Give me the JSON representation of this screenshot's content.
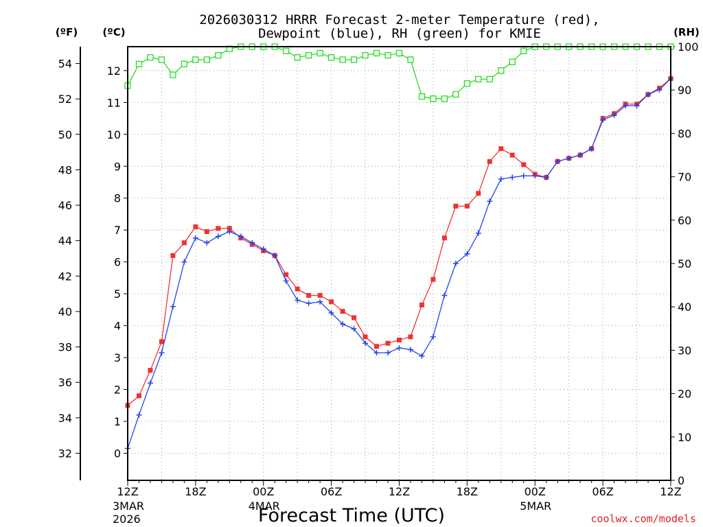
{
  "chart_data": {
    "type": "line",
    "title_line1": "2026030312 HRRR Forecast 2-meter Temperature (red),",
    "title_line2": "Dewpoint (blue), RH (green) for KMIE",
    "xlabel": "Forecast Time (UTC)",
    "left_unit_f": "(ºF)",
    "left_unit_c": "(ºC)",
    "right_unit": "(RH)",
    "credit": "coolwx.com/models",
    "x_hours": [
      0,
      1,
      2,
      3,
      4,
      5,
      6,
      7,
      8,
      9,
      10,
      11,
      12,
      13,
      14,
      15,
      16,
      17,
      18,
      19,
      20,
      21,
      22,
      23,
      24,
      25,
      26,
      27,
      28,
      29,
      30,
      31,
      32,
      33,
      34,
      35,
      36,
      37,
      38,
      39,
      40,
      41,
      42,
      43,
      44,
      45,
      46,
      47,
      48
    ],
    "xlim": [
      0,
      48
    ],
    "ylim_c": [
      -0.85,
      12.75
    ],
    "ylim_rh": [
      0,
      100
    ],
    "x_ticks": [
      {
        "hour": 0,
        "label": "12Z",
        "sub1": "3MAR",
        "sub2": "2026"
      },
      {
        "hour": 6,
        "label": "18Z",
        "sub1": "",
        "sub2": ""
      },
      {
        "hour": 12,
        "label": "00Z",
        "sub1": "4MAR",
        "sub2": ""
      },
      {
        "hour": 18,
        "label": "06Z",
        "sub1": "",
        "sub2": ""
      },
      {
        "hour": 24,
        "label": "12Z",
        "sub1": "",
        "sub2": ""
      },
      {
        "hour": 30,
        "label": "18Z",
        "sub1": "",
        "sub2": ""
      },
      {
        "hour": 36,
        "label": "00Z",
        "sub1": "5MAR",
        "sub2": ""
      },
      {
        "hour": 42,
        "label": "06Z",
        "sub1": "",
        "sub2": ""
      },
      {
        "hour": 48,
        "label": "12Z",
        "sub1": "",
        "sub2": ""
      }
    ],
    "c_ticks": [
      "0",
      "1",
      "2",
      "3",
      "4",
      "5",
      "6",
      "7",
      "8",
      "9",
      "10",
      "11",
      "12"
    ],
    "f_ticks": [
      "32",
      "34",
      "36",
      "38",
      "40",
      "42",
      "44",
      "46",
      "48",
      "50",
      "52",
      "54"
    ],
    "rh_ticks": [
      "0",
      "10",
      "20",
      "30",
      "40",
      "50",
      "60",
      "70",
      "80",
      "90",
      "100"
    ],
    "series": [
      {
        "name": "Temperature",
        "color": "#ee3333",
        "marker": "square-filled",
        "values": [
          1.5,
          1.8,
          2.6,
          3.5,
          6.2,
          6.6,
          7.1,
          6.95,
          7.05,
          7.05,
          6.75,
          6.55,
          6.35,
          6.2,
          5.6,
          5.15,
          4.95,
          4.95,
          4.75,
          4.45,
          4.25,
          3.65,
          3.35,
          3.45,
          3.55,
          3.65,
          4.65,
          5.45,
          6.75,
          7.75,
          7.75,
          8.15,
          9.15,
          9.55,
          9.35,
          9.05,
          8.75,
          8.65,
          9.15,
          9.25,
          9.35,
          9.55,
          10.5,
          10.65,
          10.95,
          10.95,
          11.25,
          11.45,
          11.75
        ]
      },
      {
        "name": "Dewpoint",
        "color": "#2244ee",
        "marker": "plus",
        "values": [
          0.15,
          1.2,
          2.2,
          3.15,
          4.6,
          6.0,
          6.75,
          6.6,
          6.8,
          6.95,
          6.8,
          6.6,
          6.4,
          6.2,
          5.4,
          4.8,
          4.7,
          4.75,
          4.4,
          4.05,
          3.9,
          3.45,
          3.15,
          3.15,
          3.3,
          3.25,
          3.05,
          3.65,
          4.95,
          5.95,
          6.25,
          6.9,
          7.9,
          8.6,
          8.65,
          8.7,
          8.7,
          8.65,
          9.15,
          9.25,
          9.35,
          9.55,
          10.45,
          10.6,
          10.9,
          10.9,
          11.25,
          11.4,
          11.75
        ]
      },
      {
        "name": "RH",
        "color": "#22dd22",
        "marker": "square-open",
        "values": [
          91,
          96,
          97.5,
          97,
          93.5,
          96,
          97,
          97,
          98,
          99.5,
          100,
          100,
          100,
          100,
          99,
          97.5,
          98,
          98.5,
          97.5,
          97,
          97,
          98,
          98.5,
          98,
          98.5,
          97,
          88.5,
          88,
          88,
          89,
          91.5,
          92.5,
          92.5,
          94.5,
          96.5,
          99,
          100,
          100,
          100,
          100,
          100,
          100,
          100,
          100,
          100,
          100,
          100,
          100,
          100
        ]
      }
    ]
  }
}
